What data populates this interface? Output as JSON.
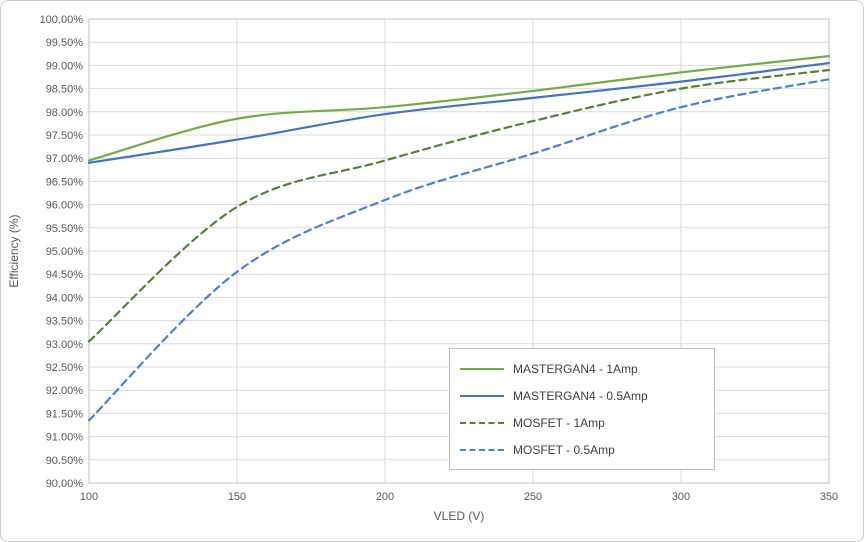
{
  "chart_data": {
    "type": "line",
    "title": "",
    "xlabel": "VLED (V)",
    "ylabel": "Efficiency (%)",
    "x": [
      100,
      150,
      200,
      250,
      300,
      350
    ],
    "xlim": [
      100,
      350
    ],
    "ylim": [
      90,
      100
    ],
    "ytick_step": 0.5,
    "ytick_format": "0.00%",
    "grid": true,
    "legend_position": "inside-bottom-right",
    "series": [
      {
        "name": "MASTERGAN4 - 1Amp",
        "color": "#70ad47",
        "style": "solid",
        "values": [
          96.95,
          97.85,
          98.1,
          98.45,
          98.85,
          99.2
        ]
      },
      {
        "name": "MASTERGAN4 - 0.5Amp",
        "color": "#4472c4",
        "style": "solid",
        "values": [
          96.9,
          97.4,
          97.95,
          98.3,
          98.65,
          99.05
        ]
      },
      {
        "name": "MOSFET - 1Amp",
        "color": "#548235",
        "style": "dashed",
        "values": [
          93.05,
          95.95,
          96.95,
          97.8,
          98.5,
          98.9
        ]
      },
      {
        "name": "MOSFET - 0.5Amp",
        "color": "#4a7fd4",
        "style": "dashed",
        "values": [
          91.35,
          94.55,
          96.1,
          97.1,
          98.1,
          98.7
        ]
      }
    ],
    "colors": {
      "grid": "#d9d9d9",
      "plot_border": "#c0c0c0",
      "axis_text": "#595959"
    }
  }
}
